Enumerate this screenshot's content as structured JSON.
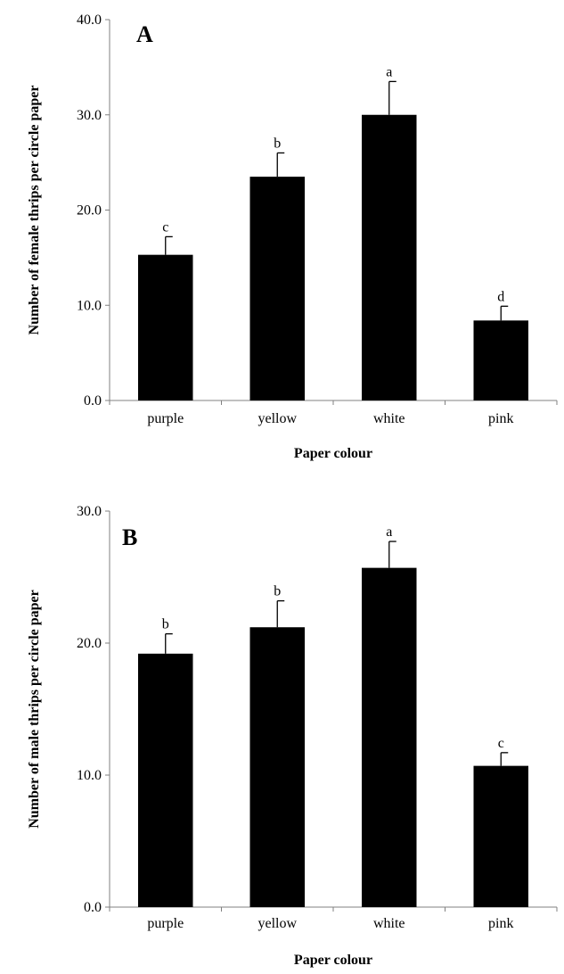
{
  "chart_data": [
    {
      "type": "bar",
      "panel_label": "A",
      "categories": [
        "purple",
        "yellow",
        "white",
        "pink"
      ],
      "values": [
        15.3,
        23.5,
        30.0,
        8.4
      ],
      "errors": [
        1.9,
        2.5,
        3.5,
        1.5
      ],
      "significance": [
        "c",
        "b",
        "a",
        "d"
      ],
      "ylim": [
        0,
        40
      ],
      "yticks": [
        "0.0",
        "10.0",
        "20.0",
        "30.0",
        "40.0"
      ],
      "xlabel": "Paper colour",
      "ylabel": "Number of female thrips per circle paper",
      "bar_color": "#000000",
      "grid": false
    },
    {
      "type": "bar",
      "panel_label": "B",
      "categories": [
        "purple",
        "yellow",
        "white",
        "pink"
      ],
      "values": [
        19.2,
        21.2,
        25.7,
        10.7
      ],
      "errors": [
        1.5,
        2.0,
        2.0,
        1.0
      ],
      "significance": [
        "b",
        "b",
        "a",
        "c"
      ],
      "ylim": [
        0,
        30
      ],
      "yticks": [
        "0.0",
        "10.0",
        "20.0",
        "30.0"
      ],
      "xlabel": "Paper colour",
      "ylabel": "Number of male thrips per circle paper",
      "bar_color": "#000000",
      "grid": false
    }
  ]
}
